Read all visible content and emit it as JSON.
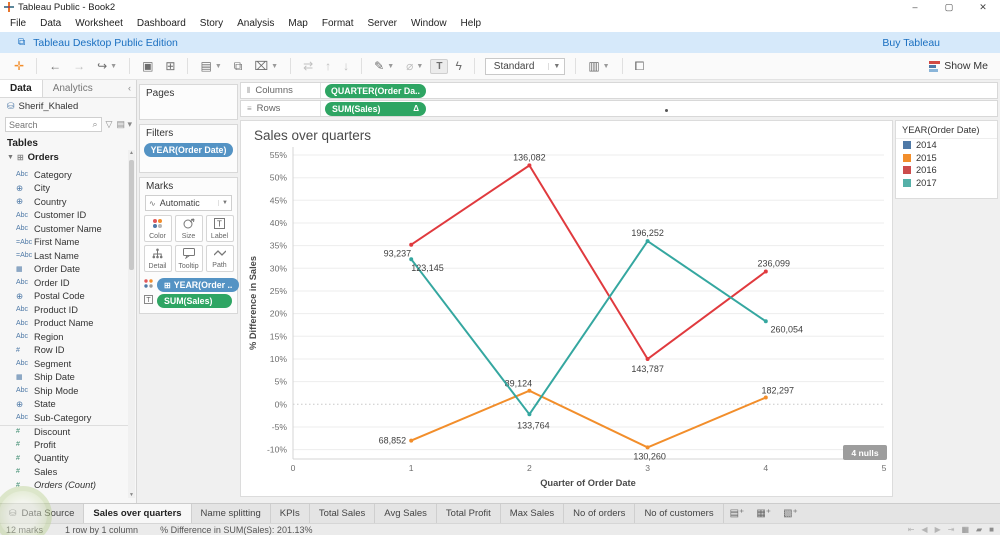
{
  "window": {
    "title": "Tableau Public - Book2",
    "minimize": "–",
    "maximize": "▢",
    "close": "✕"
  },
  "menu": {
    "items": [
      "File",
      "Data",
      "Worksheet",
      "Dashboard",
      "Story",
      "Analysis",
      "Map",
      "Format",
      "Server",
      "Window",
      "Help"
    ]
  },
  "banner": {
    "text": "Tableau Desktop Public Edition",
    "action": "Buy Tableau"
  },
  "toolbar": {
    "fit": "Standard",
    "show_me": "Show Me",
    "buttons": [
      {
        "name": "tableau-logo",
        "glyph": "✛",
        "color": "#f28e2b"
      },
      {
        "sep": true
      },
      {
        "name": "back-button",
        "glyph": "←"
      },
      {
        "name": "forward-button",
        "glyph": "→",
        "dim": true
      },
      {
        "name": "redo-button",
        "glyph": "↪",
        "caret": true
      },
      {
        "sep": true
      },
      {
        "name": "save-button",
        "glyph": "▣"
      },
      {
        "name": "add-datasource-button",
        "glyph": "⊞"
      },
      {
        "sep": true
      },
      {
        "name": "new-worksheet-button",
        "glyph": "▤",
        "caret": true
      },
      {
        "name": "duplicate-sheet-button",
        "glyph": "⧉"
      },
      {
        "name": "clear-sheet-button",
        "glyph": "⌧",
        "caret": true
      },
      {
        "sep": true
      },
      {
        "name": "swap-axes-button",
        "glyph": "⇄",
        "dim": true
      },
      {
        "name": "sort-ascending-button",
        "glyph": "↑",
        "dim": true
      },
      {
        "name": "sort-descending-button",
        "glyph": "↓",
        "dim": true
      },
      {
        "sep": true
      },
      {
        "name": "highlight-button",
        "glyph": "✎",
        "caret": true
      },
      {
        "name": "format-button",
        "glyph": "⌀",
        "caret": true,
        "dim": true
      },
      {
        "name": "show-mark-labels-button",
        "glyph": "T",
        "boxed": true
      },
      {
        "name": "fix-axes-button",
        "glyph": "ϟ"
      },
      {
        "sep": true
      },
      {
        "name": "fit-dropdown",
        "fit": true
      },
      {
        "sep": true
      },
      {
        "name": "cell-size-button",
        "glyph": "▥",
        "caret": true
      },
      {
        "sep": true
      },
      {
        "name": "presentation-mode-button",
        "glyph": "⧠"
      }
    ]
  },
  "sidebar": {
    "tab_data": "Data",
    "tab_analytics": "Analytics",
    "collapse": "‹",
    "connection": "Sherif_Khaled",
    "search_placeholder": "Search",
    "tables_label": "Tables",
    "table_group": "Orders",
    "fields": [
      {
        "name": "Category",
        "icon": "abc"
      },
      {
        "name": "City",
        "icon": "globe"
      },
      {
        "name": "Country",
        "icon": "globe"
      },
      {
        "name": "Customer ID",
        "icon": "abc"
      },
      {
        "name": "Customer Name",
        "icon": "abc"
      },
      {
        "name": "First Name",
        "icon": "abc-calc"
      },
      {
        "name": "Last Name",
        "icon": "abc-calc"
      },
      {
        "name": "Order Date",
        "icon": "date"
      },
      {
        "name": "Order ID",
        "icon": "abc"
      },
      {
        "name": "Postal Code",
        "icon": "globe"
      },
      {
        "name": "Product ID",
        "icon": "abc"
      },
      {
        "name": "Product Name",
        "icon": "abc"
      },
      {
        "name": "Region",
        "icon": "abc"
      },
      {
        "name": "Row ID",
        "icon": "num-dim"
      },
      {
        "name": "Segment",
        "icon": "abc"
      },
      {
        "name": "Ship Date",
        "icon": "date"
      },
      {
        "name": "Ship Mode",
        "icon": "abc"
      },
      {
        "name": "State",
        "icon": "globe"
      },
      {
        "name": "Sub-Category",
        "icon": "abc"
      },
      {
        "name": "Discount",
        "icon": "num",
        "measure": true,
        "sep": true
      },
      {
        "name": "Profit",
        "icon": "num",
        "measure": true
      },
      {
        "name": "Quantity",
        "icon": "num",
        "measure": true
      },
      {
        "name": "Sales",
        "icon": "num",
        "measure": true
      },
      {
        "name": "Orders (Count)",
        "icon": "num",
        "measure": true,
        "italic": true
      }
    ]
  },
  "cards": {
    "pages": "Pages",
    "filters": "Filters",
    "filters_pill": "YEAR(Order Date)",
    "marks": "Marks",
    "marks_type": "Automatic",
    "mark_buttons": [
      "Color",
      "Size",
      "Label",
      "Detail",
      "Tooltip",
      "Path"
    ],
    "pill_color": "YEAR(Order ..",
    "pill_label": "SUM(Sales)"
  },
  "shelves": {
    "columns_label": "Columns",
    "columns_pill": "QUARTER(Order Da..",
    "rows_label": "Rows",
    "rows_pill": "SUM(Sales)",
    "rows_pill_badge": "Δ"
  },
  "chart_data": {
    "type": "line",
    "title": "Sales over quarters",
    "xlabel": "Quarter of Order Date",
    "ylabel": "% Difference in Sales",
    "xlim": [
      0,
      5
    ],
    "ylim_pct": [
      -12,
      57
    ],
    "x_ticks": [
      0,
      1,
      2,
      3,
      4,
      5
    ],
    "y_ticks_pct": [
      55,
      50,
      45,
      40,
      35,
      30,
      25,
      20,
      15,
      10,
      5,
      0,
      -5,
      -10
    ],
    "grid": "horizontal, zero line dotted",
    "legend_position": "right",
    "quarters": [
      1,
      2,
      3,
      4
    ],
    "null_indicator": "4 nulls",
    "series": [
      {
        "name": "2014",
        "color": "#4e79a7",
        "pct": [
          null,
          null,
          null,
          null
        ],
        "labels": [
          null,
          null,
          null,
          null
        ]
      },
      {
        "name": "2015",
        "color": "#f28e2b",
        "pct": [
          -8,
          3,
          -9.5,
          1.5
        ],
        "labels": [
          "68,852",
          "89,124",
          "130,260",
          "182,297"
        ],
        "label_pos": [
          [
            "end",
            -5,
            3
          ],
          [
            "middle",
            -11,
            -4
          ],
          [
            "middle",
            2,
            12
          ],
          [
            "middle",
            12,
            -4
          ]
        ]
      },
      {
        "name": "2016",
        "color": "#e03a3e",
        "pct": [
          35.2,
          52.7,
          10,
          29.3
        ],
        "labels": [
          "93,237",
          "136,082",
          "143,787",
          "236,099"
        ],
        "label_pos": [
          [
            "end",
            0,
            12
          ],
          [
            "middle",
            0,
            -5
          ],
          [
            "middle",
            0,
            13
          ],
          [
            "middle",
            8,
            -5
          ]
        ]
      },
      {
        "name": "2017",
        "color": "#35a7a0",
        "pct": [
          32,
          -2.2,
          36,
          18.3
        ],
        "labels": [
          "123,145",
          "133,764",
          "196,252",
          "260,054"
        ],
        "label_pos": [
          [
            "start",
            0,
            12
          ],
          [
            "middle",
            4,
            14
          ],
          [
            "middle",
            0,
            -5
          ],
          [
            "middle",
            21,
            11
          ]
        ]
      }
    ]
  },
  "legend": {
    "title": "YEAR(Order Date)",
    "items": [
      {
        "label": "2014",
        "color": "#4e79a7"
      },
      {
        "label": "2015",
        "color": "#f28e2b"
      },
      {
        "label": "2016",
        "color": "#cc4c4c"
      },
      {
        "label": "2017",
        "color": "#55b0a8"
      }
    ]
  },
  "sheet_tabs": {
    "tabs": [
      {
        "label": "Data Source",
        "datasource": true
      },
      {
        "label": "Sales over quarters",
        "active": true
      },
      {
        "label": "Name splitting"
      },
      {
        "label": "KPIs"
      },
      {
        "label": "Total Sales"
      },
      {
        "label": "Avg Sales"
      },
      {
        "label": "Total Profit"
      },
      {
        "label": "Max Sales"
      },
      {
        "label": "No of orders"
      },
      {
        "label": "No of customers"
      }
    ],
    "new_buttons": [
      {
        "name": "new-worksheet-tab-button",
        "glyph": "▤⁺"
      },
      {
        "name": "new-dashboard-tab-button",
        "glyph": "▦⁺"
      },
      {
        "name": "new-story-tab-button",
        "glyph": "▧⁺"
      }
    ]
  },
  "status_bar": {
    "marks": "12 marks",
    "size": "1 row by 1 column",
    "aggregate": "% Difference in SUM(Sales): 201.13%",
    "nav_icons": [
      "⇤",
      "◀",
      "▶",
      "⇥"
    ],
    "view_icons": [
      "▦",
      "▰",
      "■"
    ]
  }
}
